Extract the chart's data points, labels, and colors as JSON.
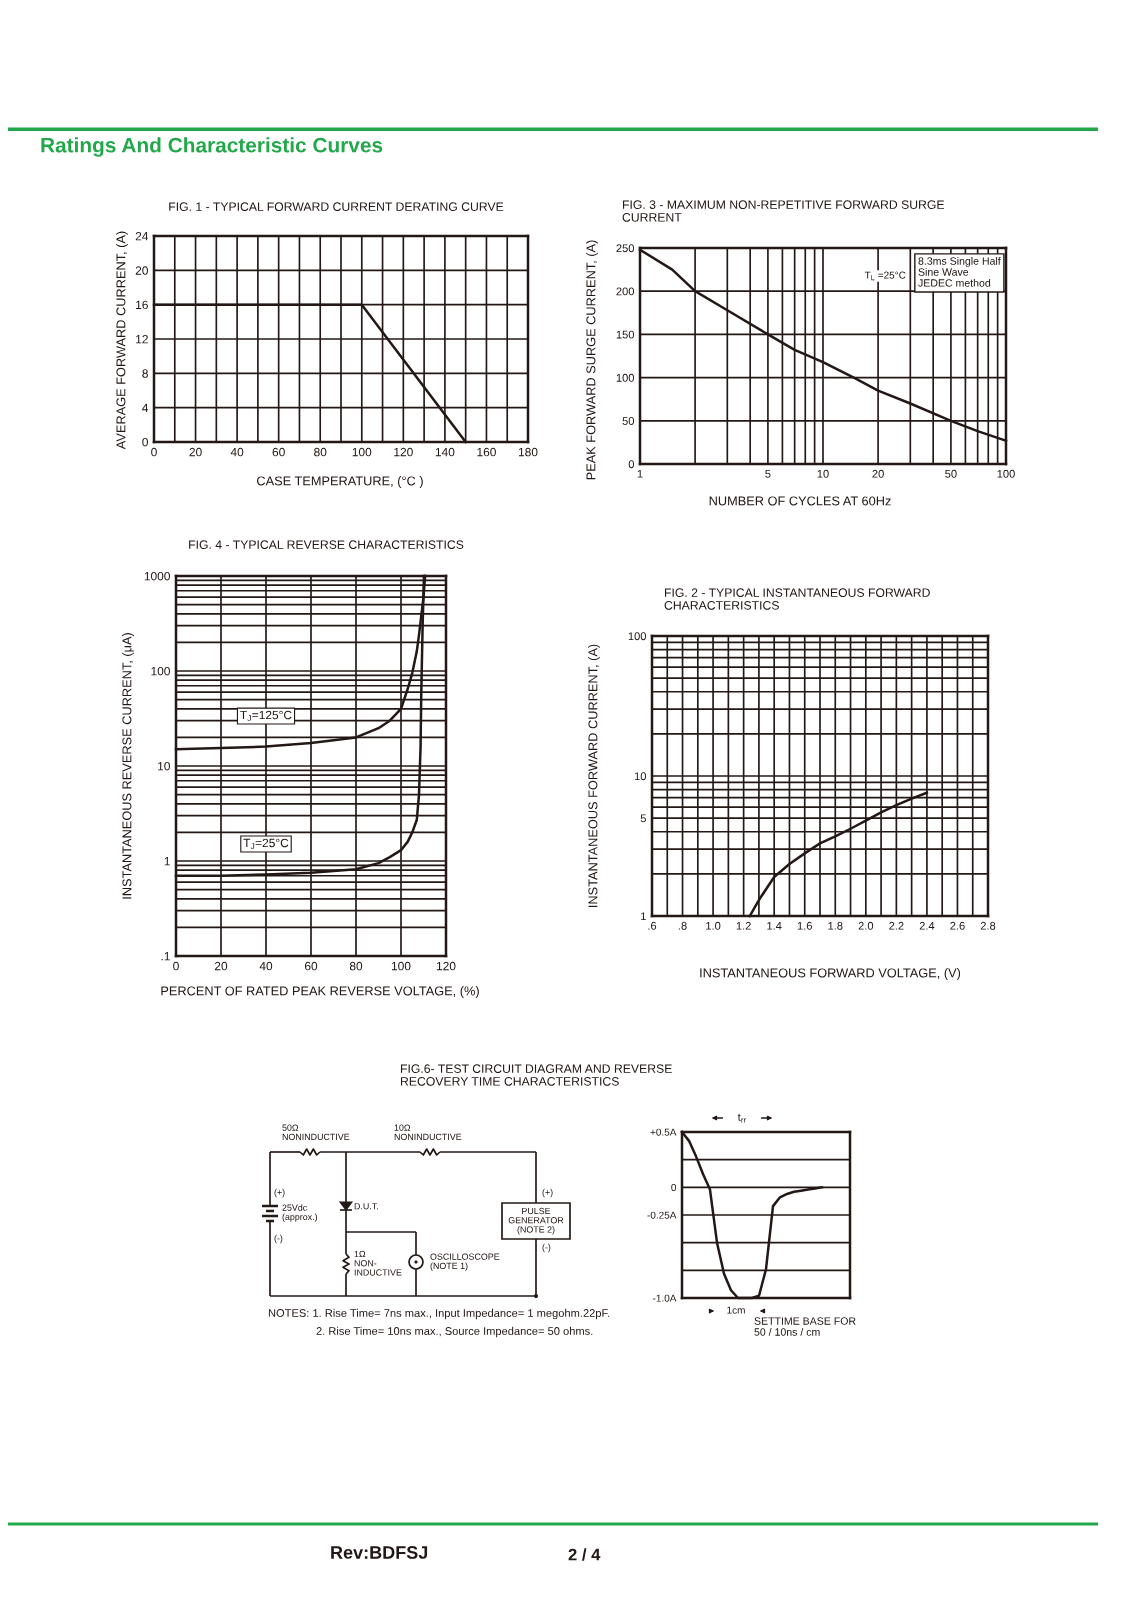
{
  "chart_data": [
    {
      "type": "other",
      "title": "Ratings And Characteristic Curves",
      "annotations": [
        "Rev:BDFSJ",
        "2 / 4"
      ]
    },
    {
      "type": "line",
      "title": "FIG. 1 - TYPICAL FORWARD CURRENT DERATING CURVE",
      "xlabel": "CASE TEMPERATURE, (°C )",
      "ylabel": "AVERAGE FORWARD CURRENT, (A)",
      "x": [
        0,
        100,
        150
      ],
      "series": [
        {
          "color": "#231815",
          "values": [
            16,
            16,
            0
          ]
        }
      ],
      "xlim": [
        0,
        180
      ],
      "ylim": [
        0,
        24
      ],
      "xticks": [
        0,
        {
          "value": 10,
          "label": null
        },
        20,
        {
          "value": 30,
          "label": null
        },
        40,
        {
          "value": 50,
          "label": null
        },
        60,
        {
          "value": 70,
          "label": null
        },
        80,
        {
          "value": 90,
          "label": null
        },
        100,
        {
          "value": 110,
          "label": null
        },
        120,
        {
          "value": 130,
          "label": null
        },
        140,
        {
          "value": 150,
          "label": null
        },
        160,
        {
          "value": 170,
          "label": null
        },
        180
      ],
      "yticks": [
        0,
        4,
        8,
        12,
        16,
        20,
        24
      ],
      "grid": true
    },
    {
      "type": "line",
      "title": "FIG. 3 - MAXIMUM NON-REPETITIVE FORWARD SURGE\nCURRENT",
      "xlabel": "NUMBER OF CYCLES AT 60Hz",
      "ylabel": "PEAK FORWARD SURGE CURRENT, (A)",
      "x": [
        1,
        1.5,
        2,
        3,
        5,
        7,
        10,
        15,
        20,
        30,
        50,
        70,
        100
      ],
      "series": [
        {
          "color": "#231815",
          "values": [
            248,
            225,
            200,
            178,
            150,
            132,
            118,
            99,
            85,
            70,
            50,
            38,
            27
          ]
        }
      ],
      "log": "x",
      "xlim": [
        1,
        100
      ],
      "ylim": [
        0,
        250
      ],
      "xticks": [
        1,
        {
          "value": 2,
          "label": null
        },
        {
          "value": 3,
          "label": null
        },
        {
          "value": 4,
          "label": null
        },
        5,
        {
          "value": 6,
          "label": null
        },
        {
          "value": 7,
          "label": null
        },
        {
          "value": 8,
          "label": null
        },
        {
          "value": 9,
          "label": null
        },
        10,
        20,
        {
          "value": 30,
          "label": null
        },
        {
          "value": 40,
          "label": null
        },
        50,
        {
          "value": 60,
          "label": null
        },
        {
          "value": 70,
          "label": null
        },
        {
          "value": 80,
          "label": null
        },
        {
          "value": 90,
          "label": null
        },
        100
      ],
      "yticks": [
        0,
        50,
        100,
        150,
        200,
        250
      ],
      "grid": true,
      "annotations": [
        "T$_{L}$ =25°C",
        "8.3ms Single Half\nSine Wave\nJEDEC method"
      ]
    },
    {
      "type": "line",
      "title": "FIG. 4 - TYPICAL REVERSE CHARACTERISTICS",
      "xlabel": "PERCENT OF RATED PEAK REVERSE VOLTAGE, (%)",
      "ylabel": "INSTANTANEOUS REVERSE CURRENT, (μA)",
      "series": [
        {
          "name": "T$_{J}$=125°C",
          "color": "#231815",
          "x": [
            0,
            20,
            40,
            60,
            80,
            90,
            95,
            100,
            103,
            105,
            107,
            108,
            109,
            110,
            110.7
          ],
          "values": [
            15,
            15.5,
            16,
            17.5,
            20,
            25,
            30,
            40,
            65,
            95,
            160,
            240,
            380,
            600,
            1000
          ]
        },
        {
          "name": "T$_{J}$=25°C",
          "color": "#231815",
          "x": [
            0,
            20,
            40,
            60,
            80,
            90,
            95,
            100,
            103,
            105,
            107,
            108,
            108.7,
            109,
            109.6,
            110.2
          ],
          "values": [
            0.7,
            0.7,
            0.72,
            0.75,
            0.82,
            0.95,
            1.1,
            1.3,
            1.6,
            2.0,
            2.7,
            5,
            16,
            57,
            290,
            1000
          ]
        }
      ],
      "log": true,
      "xlim": [
        0,
        120
      ],
      "ylim": [
        0.1,
        1000
      ],
      "xticks": [
        0,
        20,
        40,
        60,
        80,
        100,
        120
      ],
      "yticks": [
        {
          "value": 0.1,
          "label": ".1"
        },
        {
          "value": 0.2,
          "label": null
        },
        {
          "value": 0.3,
          "label": null
        },
        {
          "value": 0.4,
          "label": null
        },
        {
          "value": 0.5,
          "label": null
        },
        {
          "value": 0.6,
          "label": null
        },
        {
          "value": 0.7,
          "label": null
        },
        {
          "value": 0.8,
          "label": null
        },
        {
          "value": 0.9,
          "label": null
        },
        1,
        {
          "value": 2,
          "label": null
        },
        {
          "value": 3,
          "label": null
        },
        {
          "value": 4,
          "label": null
        },
        {
          "value": 5,
          "label": null
        },
        {
          "value": 6,
          "label": null
        },
        {
          "value": 7,
          "label": null
        },
        {
          "value": 8,
          "label": null
        },
        {
          "value": 9,
          "label": null
        },
        10,
        {
          "value": 20,
          "label": null
        },
        {
          "value": 30,
          "label": null
        },
        {
          "value": 40,
          "label": null
        },
        {
          "value": 50,
          "label": null
        },
        {
          "value": 60,
          "label": null
        },
        {
          "value": 70,
          "label": null
        },
        {
          "value": 80,
          "label": null
        },
        {
          "value": 90,
          "label": null
        },
        100,
        {
          "value": 200,
          "label": null
        },
        {
          "value": 300,
          "label": null
        },
        {
          "value": 400,
          "label": null
        },
        {
          "value": 500,
          "label": null
        },
        {
          "value": 600,
          "label": null
        },
        {
          "value": 700,
          "label": null
        },
        {
          "value": 800,
          "label": null
        },
        {
          "value": 900,
          "label": null
        },
        1000
      ],
      "grid": true
    },
    {
      "type": "line",
      "title": "FIG. 2 - TYPICAL INSTANTANEOUS FORWARD\nCHARACTERISTICS",
      "xlabel": "INSTANTANEOUS FORWARD VOLTAGE, (V)",
      "ylabel": "INSTANTANEOUS FORWARD CURRENT, (A)",
      "x": [
        1.24,
        1.3,
        1.4,
        1.5,
        1.6,
        1.7,
        1.8,
        1.9,
        2.0,
        2.1,
        2.2,
        2.3,
        2.4
      ],
      "series": [
        {
          "color": "#231815",
          "values": [
            1.0,
            1.3,
            1.9,
            2.35,
            2.8,
            3.3,
            3.7,
            4.2,
            4.8,
            5.5,
            6.2,
            6.9,
            7.6
          ]
        }
      ],
      "log": true,
      "xlim": [
        0.6,
        2.8
      ],
      "ylim": [
        1,
        100
      ],
      "xticks": [
        {
          "value": 0.6,
          "label": ".6"
        },
        {
          "value": 0.7,
          "label": null
        },
        {
          "value": 0.8,
          "label": ".8"
        },
        {
          "value": 0.9,
          "label": null
        },
        {
          "value": 1.0,
          "label": "1.0"
        },
        {
          "value": 1.1,
          "label": null
        },
        1.2,
        {
          "value": 1.3,
          "label": null
        },
        1.4,
        {
          "value": 1.5,
          "label": null
        },
        1.6,
        {
          "value": 1.7,
          "label": null
        },
        1.8,
        {
          "value": 1.9,
          "label": null
        },
        {
          "value": 2.0,
          "label": "2.0"
        },
        {
          "value": 2.1,
          "label": null
        },
        2.2,
        {
          "value": 2.3,
          "label": null
        },
        2.4,
        {
          "value": 2.5,
          "label": null
        },
        2.6,
        {
          "value": 2.7,
          "label": null
        },
        2.8
      ],
      "yticks": [
        1,
        {
          "value": 2,
          "label": null
        },
        {
          "value": 3,
          "label": null
        },
        {
          "value": 4,
          "label": null
        },
        5,
        {
          "value": 6,
          "label": null
        },
        {
          "value": 7,
          "label": null
        },
        {
          "value": 8,
          "label": null
        },
        {
          "value": 9,
          "label": null
        },
        10,
        {
          "value": 20,
          "label": null
        },
        {
          "value": 30,
          "label": null
        },
        {
          "value": 40,
          "label": null
        },
        {
          "value": 50,
          "label": null
        },
        {
          "value": 60,
          "label": null
        },
        {
          "value": 70,
          "label": null
        },
        {
          "value": 80,
          "label": null
        },
        {
          "value": 90,
          "label": null
        },
        100
      ],
      "grid": true
    },
    {
      "type": "other",
      "title": "FIG.6- TEST CIRCUIT DIAGRAM AND REVERSE\nRECOVERY TIME CHARACTERISTICS",
      "annotations": [
        "50Ω\nNONINDUCTIVE",
        "10Ω\nNONINDUCTIVE",
        "(+)",
        "25Vdc\n(approx.)",
        "(-)",
        "D.U.T.",
        "1Ω\nNON-\nINDUCTIVE",
        "OSCILLOSCOPE\n(NOTE 1)",
        "PULSE\nGENERATOR\n(NOTE 2)",
        "(+)",
        "(-)",
        "NOTES: 1. Rise Time= 7ns max., Input Impedance= 1 megohm.22pF.",
        "2. Rise Time= 10ns max., Source Impedance= 50 ohms."
      ]
    },
    {
      "type": "line",
      "categories": [
        null,
        null,
        null,
        null,
        null,
        null,
        null,
        null,
        null,
        null,
        null,
        null,
        null,
        null,
        null,
        null,
        null,
        null,
        null,
        null,
        null,
        null,
        null,
        null,
        null
      ],
      "series": [
        {
          "color": "#231815",
          "values": [
            0.5,
            0.42,
            0.28,
            0.12,
            -0.02,
            -0.5,
            -0.78,
            -0.93,
            -1.0,
            -1.0,
            -1.0,
            -0.98,
            -0.74,
            -0.17,
            -0.09,
            -0.06,
            -0.04,
            -0.03,
            -0.02,
            -0.01,
            0,
            null,
            null,
            null,
            null
          ]
        }
      ],
      "ylim": [
        -1.0,
        0.5
      ],
      "yticks": [
        {
          "value": 0.5,
          "label": "+0.5A"
        },
        {
          "value": 0.25,
          "label": null
        },
        0,
        {
          "value": -0.25,
          "label": "-0.25A"
        },
        {
          "value": -0.5,
          "label": null
        },
        {
          "value": -0.75,
          "label": null
        },
        {
          "value": -1.0,
          "label": "-1.0A"
        }
      ],
      "grid": "y",
      "tick_labels": "y",
      "annotations": [
        "t$_{rr}$",
        "1cm",
        "SETTIME BASE FOR\n50 / 10ns / cm"
      ]
    }
  ]
}
